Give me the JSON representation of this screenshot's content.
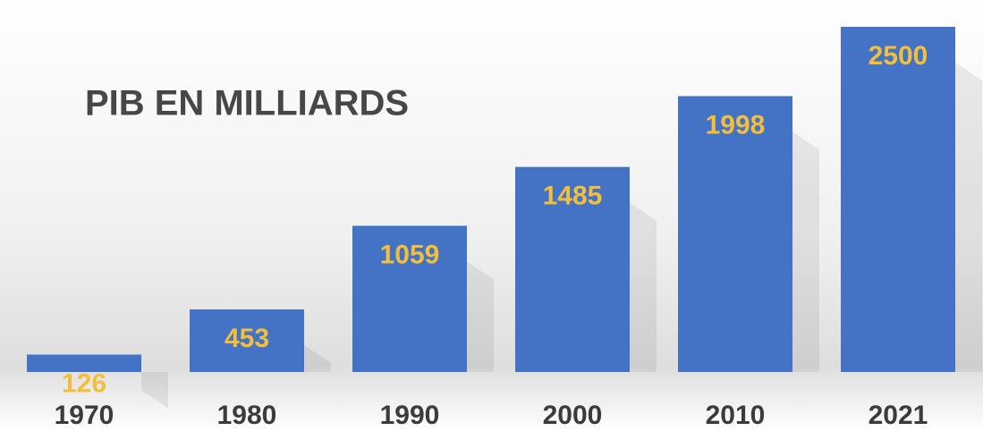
{
  "chart_data": {
    "type": "bar",
    "title": "PIB EN MILLIARDS",
    "categories": [
      "1970",
      "1980",
      "1990",
      "2000",
      "2010",
      "2021"
    ],
    "values": [
      126,
      453,
      1059,
      1485,
      1998,
      2500
    ],
    "color": "#4472c4",
    "ylim": [
      0,
      2500
    ]
  }
}
